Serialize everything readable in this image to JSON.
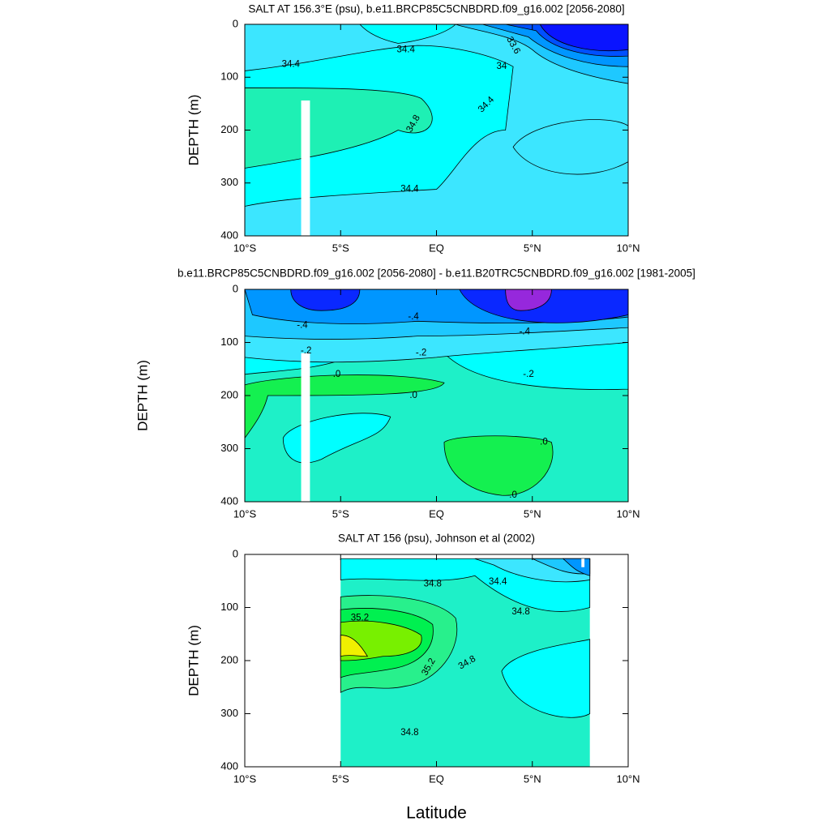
{
  "chart_data": [
    {
      "type": "contour",
      "title": "SALT AT 156.3°E (psu), b.e11.BRCP85C5CNBDRD.f09_g16.002 [2056-2080]",
      "ylabel": "DEPTH (m)",
      "xlim": [
        -10,
        10
      ],
      "ylim": [
        400,
        0
      ],
      "xticks": [
        {
          "value": -10,
          "label": "10°S"
        },
        {
          "value": -5,
          "label": "5°S"
        },
        {
          "value": 0,
          "label": "EQ"
        },
        {
          "value": 5,
          "label": "5°N"
        },
        {
          "value": 10,
          "label": "10°N"
        }
      ],
      "yticks": [
        0,
        100,
        200,
        300,
        400
      ],
      "contour_labels": [
        {
          "value": 33.6,
          "label": "33.6"
        },
        34,
        34.4,
        34.8
      ],
      "fill_colors": [
        "#3ce6ff",
        "#00ffff",
        "#1ef0b4",
        "#1ec8ff",
        "#0096ff",
        "#0050ff",
        "#0a14ff"
      ]
    },
    {
      "type": "contour",
      "title": "b.e11.BRCP85C5CNBDRD.f09_g16.002 [2056-2080] - b.e11.B20TRC5CNBDRD.f09_g16.002 [1981-2005]",
      "ylabel": "DEPTH (m)",
      "xlim": [
        -10,
        10
      ],
      "ylim": [
        400,
        0
      ],
      "xticks": [
        {
          "value": -10,
          "label": "10°S"
        },
        {
          "value": -5,
          "label": "5°S"
        },
        {
          "value": 0,
          "label": "EQ"
        },
        {
          "value": 5,
          "label": "5°N"
        },
        {
          "value": 10,
          "label": "10°N"
        }
      ],
      "yticks": [
        0,
        100,
        200,
        300,
        400
      ],
      "contour_labels": [
        {
          "value": -0.4,
          "label": "-.4"
        },
        {
          "value": -0.2,
          "label": "-.2"
        },
        {
          "value": 0,
          "label": ".0"
        }
      ],
      "fill_colors": [
        "#1ef0c8",
        "#00ffff",
        "#3ce6ff",
        "#1ec8ff",
        "#0096ff",
        "#0a28ff",
        "#9628dc",
        "#14f050"
      ]
    },
    {
      "type": "contour",
      "title": "SALT AT 156 (psu), Johnson et al (2002)",
      "ylabel": "DEPTH (m)",
      "xlabel": "Latitude",
      "xlim": [
        -10,
        10
      ],
      "ylim": [
        400,
        0
      ],
      "xticks": [
        {
          "value": -10,
          "label": "10°S"
        },
        {
          "value": -5,
          "label": "5°S"
        },
        {
          "value": 0,
          "label": "EQ"
        },
        {
          "value": 5,
          "label": "5°N"
        },
        {
          "value": 10,
          "label": "10°N"
        }
      ],
      "yticks": [
        0,
        100,
        200,
        300,
        400
      ],
      "contour_labels": [
        34.4,
        34.8,
        35.2
      ],
      "fill_colors": [
        "#1ef0c8",
        "#00ffff",
        "#3ce6ff",
        "#1ec8ff",
        "#0096ff",
        "#28f08c",
        "#00f050",
        "#78f000",
        "#f0f000"
      ]
    }
  ]
}
